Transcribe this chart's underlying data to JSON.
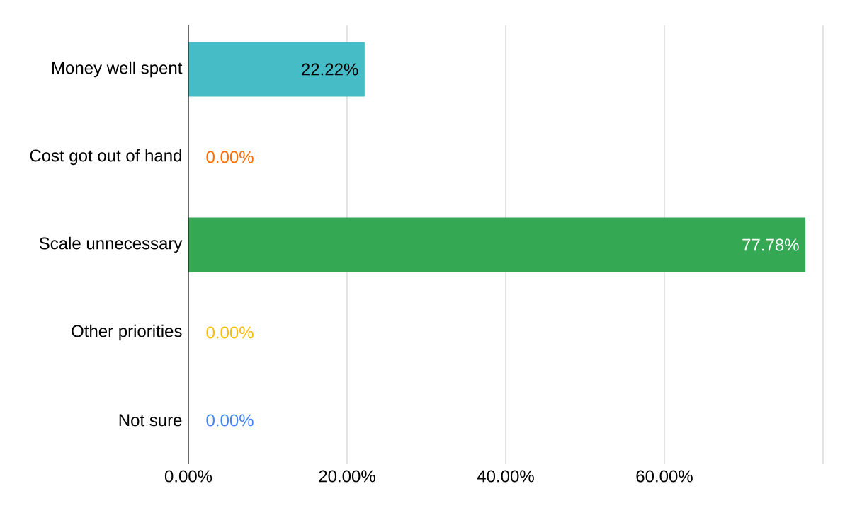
{
  "chart_data": {
    "type": "bar",
    "orientation": "horizontal",
    "categories": [
      "Money well spent",
      "Cost got out of hand",
      "Scale unnecessary",
      "Other priorities",
      "Not sure"
    ],
    "values": [
      22.22,
      0,
      77.78,
      0,
      0
    ],
    "colors": [
      "#46bdc6",
      "#ff6d01",
      "#34a853",
      "#fbbc04",
      "#4285f4"
    ],
    "value_labels": [
      "22.22%",
      "0.00%",
      "77.78%",
      "0.00%",
      "0.00%"
    ],
    "xlim": [
      0,
      80
    ],
    "xticks": [
      {
        "value": 0,
        "label": "0.00%"
      },
      {
        "value": 20,
        "label": "20.00%"
      },
      {
        "value": 40,
        "label": "40.00%"
      },
      {
        "value": 60,
        "label": "60.00%"
      },
      {
        "value": 80,
        "label": null
      }
    ],
    "grid": "x"
  }
}
